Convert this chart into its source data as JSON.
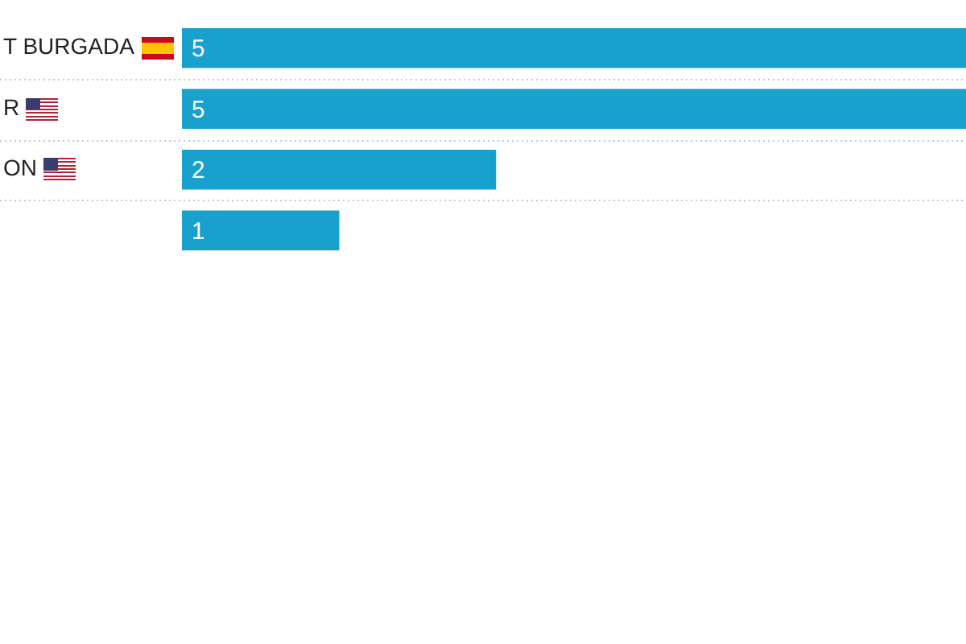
{
  "chart_data": {
    "type": "bar",
    "orientation": "horizontal",
    "categories": [
      "T BURGADA",
      "R",
      "ON",
      null
    ],
    "values": [
      5,
      5,
      2,
      1
    ],
    "color": "#18a1cd",
    "data_labels": true,
    "grid": "y",
    "legend": false,
    "tick_labels": "y"
  }
}
